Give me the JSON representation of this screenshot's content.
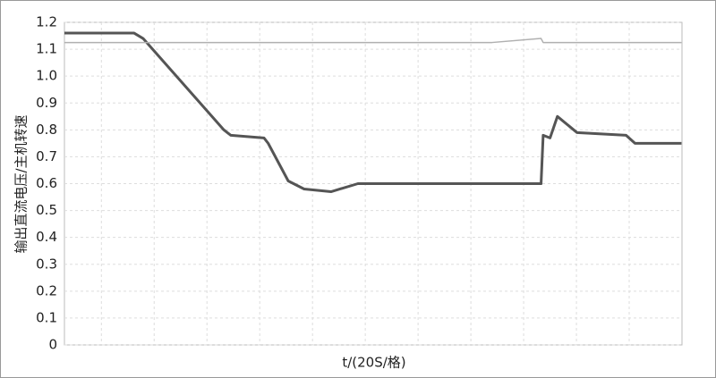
{
  "chart_data": {
    "type": "line",
    "ylabel": "输出直流电压/主机转速",
    "xlabel": "t/(20S/格)",
    "x": [
      0,
      1.32,
      1.49,
      3.02,
      3.15,
      3.78,
      3.86,
      4.24,
      4.54,
      5.05,
      5.56,
      6.41,
      8.1,
      9.03,
      9.07,
      9.2,
      9.34,
      9.71,
      10.64,
      10.81,
      11.69
    ],
    "series": [
      {
        "color": "#555555",
        "values": [
          1.16,
          1.16,
          1.14,
          0.8,
          0.78,
          0.77,
          0.75,
          0.61,
          0.58,
          0.57,
          0.6,
          0.6,
          0.6,
          0.6,
          0.78,
          0.77,
          0.85,
          0.79,
          0.78,
          0.75,
          0.75
        ]
      },
      {
        "color": "#b0b0b0",
        "values": [
          1.125,
          1.125,
          1.125,
          1.125,
          1.125,
          1.125,
          1.125,
          1.125,
          1.125,
          1.125,
          1.125,
          1.125,
          1.125,
          1.14,
          1.125,
          1.125,
          1.125,
          1.125,
          1.125,
          1.125,
          1.125
        ]
      }
    ],
    "xlim": [
      0,
      11.7
    ],
    "xticks": [
      0.7,
      1.7,
      2.7,
      3.7,
      4.7,
      5.7,
      6.7,
      7.7,
      8.7,
      9.7,
      10.7
    ],
    "ylim": [
      0,
      1.2
    ],
    "yticks": [
      0,
      0.1,
      0.2,
      0.3,
      0.4,
      0.5,
      0.6,
      0.7,
      0.8,
      0.9,
      {
        "value": 1,
        "label": "1.0"
      },
      1.1,
      1.2
    ],
    "grid": true
  }
}
